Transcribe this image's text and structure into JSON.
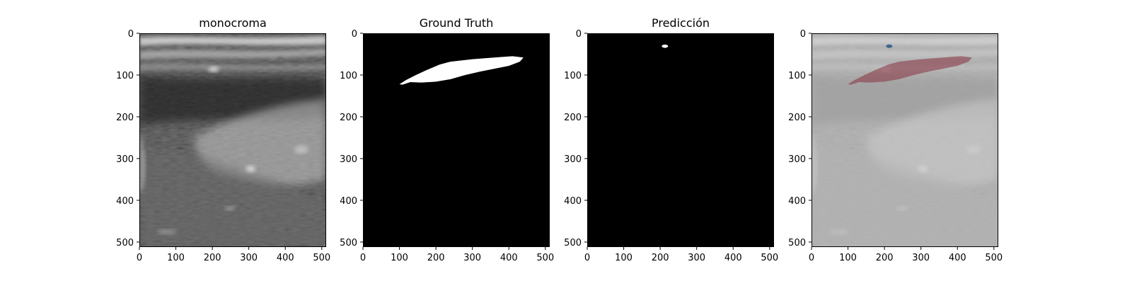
{
  "figure": {
    "panels": [
      {
        "id": "monocroma",
        "title": "monocroma",
        "kind": "ultrasound"
      },
      {
        "id": "ground-truth",
        "title": "Ground Truth",
        "kind": "mask-gt"
      },
      {
        "id": "prediccion",
        "title": "Predicción",
        "kind": "mask-pred"
      },
      {
        "id": "overlay",
        "title": "",
        "kind": "overlay"
      }
    ],
    "x_ticks": [
      "0",
      "100",
      "200",
      "300",
      "400",
      "500"
    ],
    "y_ticks": [
      "0",
      "100",
      "200",
      "300",
      "400",
      "500"
    ]
  },
  "colors": {
    "mask_background": "#000000",
    "mask_foreground": "#ffffff",
    "overlay_ground_truth": "#8b3a48",
    "overlay_prediction": "#2f5f8a",
    "overlay_tint": "#cfcfcf"
  }
}
